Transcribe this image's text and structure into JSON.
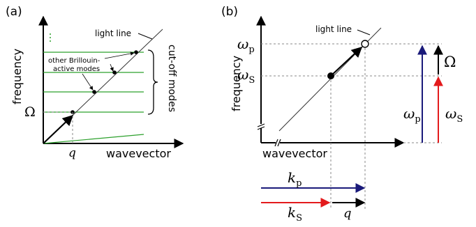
{
  "colors": {
    "axis": "#000000",
    "light_line": "#333333",
    "modes_green": "#2ca02c",
    "dashed": "#888888",
    "pump_blue": "#1a1a7a",
    "stokes_red": "#e31a1c"
  },
  "panel_a": {
    "tag": "(a)",
    "y_label": "frequency",
    "x_label": "wavevector",
    "light_line_label": "light line",
    "modes_label_line1": "other Brillouin-",
    "modes_label_line2": "active modes",
    "cutoff_label": "cut-off modes",
    "omega_label": "Ω",
    "q_label": "q"
  },
  "panel_b": {
    "tag": "(b)",
    "y_label": "frequency",
    "x_label": "wavevector",
    "light_line_label": "light line",
    "omega_p_sym": "ω",
    "omega_p_sub": "p",
    "omega_s_sym": "ω",
    "omega_s_sub": "S",
    "Omega_label": "Ω",
    "k_p_sym": "k",
    "k_p_sub": "p",
    "k_s_sym": "k",
    "k_s_sub": "S",
    "q_label": "q"
  }
}
